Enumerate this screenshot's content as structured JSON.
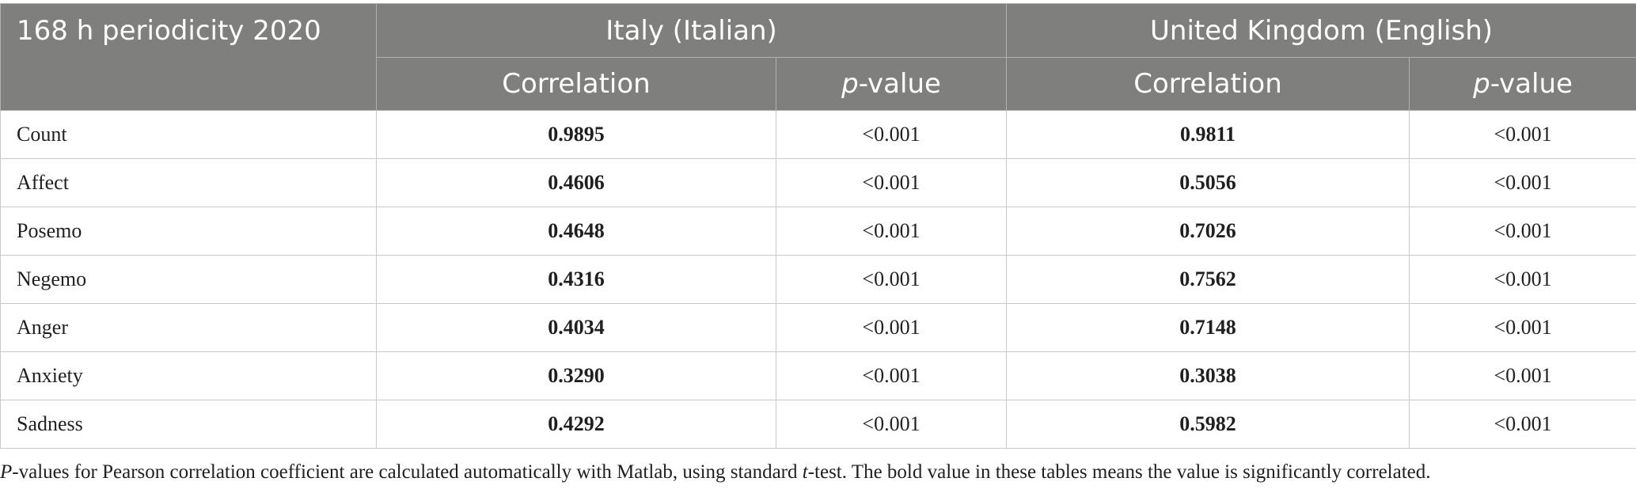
{
  "table": {
    "corner_label": "168 h periodicity 2020",
    "groups": [
      {
        "label": "Italy (Italian)"
      },
      {
        "label": "United Kingdom (English)"
      }
    ],
    "subheaders": {
      "correlation": "Correlation",
      "pvalue_prefix": "p",
      "pvalue_suffix": "-value"
    },
    "rows": [
      {
        "label": "Count",
        "it_corr": "0.9895",
        "it_p": "<0.001",
        "uk_corr": "0.9811",
        "uk_p": "<0.001"
      },
      {
        "label": "Affect",
        "it_corr": "0.4606",
        "it_p": "<0.001",
        "uk_corr": "0.5056",
        "uk_p": "<0.001"
      },
      {
        "label": "Posemo",
        "it_corr": "0.4648",
        "it_p": "<0.001",
        "uk_corr": "0.7026",
        "uk_p": "<0.001"
      },
      {
        "label": "Negemo",
        "it_corr": "0.4316",
        "it_p": "<0.001",
        "uk_corr": "0.7562",
        "uk_p": "<0.001"
      },
      {
        "label": "Anger",
        "it_corr": "0.4034",
        "it_p": "<0.001",
        "uk_corr": "0.7148",
        "uk_p": "<0.001"
      },
      {
        "label": "Anxiety",
        "it_corr": "0.3290",
        "it_p": "<0.001",
        "uk_corr": "0.3038",
        "uk_p": "<0.001"
      },
      {
        "label": "Sadness",
        "it_corr": "0.4292",
        "it_p": "<0.001",
        "uk_corr": "0.5982",
        "uk_p": "<0.001"
      }
    ]
  },
  "footnote": {
    "part1_italic": "P",
    "part2": "-values for Pearson correlation coefficient are calculated automatically with Matlab, using standard ",
    "part3_italic": "t",
    "part4": "-test. The bold value in these tables means the value is significantly correlated."
  },
  "colors": {
    "header_bg": "#7f7f7e",
    "header_text": "#ffffff",
    "body_text": "#1f1f1f",
    "grid": "#c9c9c9"
  }
}
